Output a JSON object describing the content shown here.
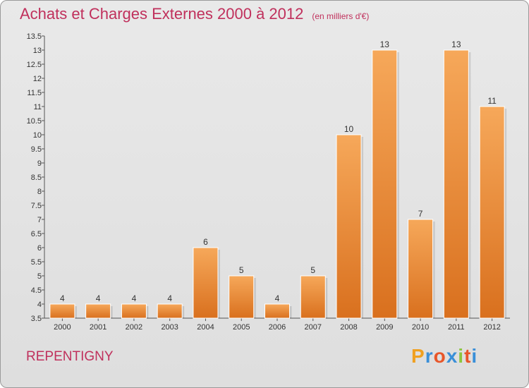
{
  "header": {
    "title": "Achats et Charges Externes 2000 à 2012",
    "subtitle": "(en milliers d'€)"
  },
  "footer": {
    "commune": "REPENTIGNY",
    "brand_letters": [
      "P",
      "r",
      "o",
      "x",
      "i",
      "t",
      "i"
    ],
    "brand_colors": [
      "#f0a020",
      "#3a8fd8",
      "#e8562a",
      "#3a8fd8",
      "#8cc63f",
      "#e8562a",
      "#3a8fd8"
    ]
  },
  "colors": {
    "bar_light": "#f6a85a",
    "bar_dark": "#d9701e",
    "title": "#c0305c"
  },
  "chart_data": {
    "type": "bar",
    "categories": [
      "2000",
      "2001",
      "2002",
      "2003",
      "2004",
      "2005",
      "2006",
      "2007",
      "2008",
      "2009",
      "2010",
      "2011",
      "2012"
    ],
    "values": [
      4,
      4,
      4,
      4,
      6,
      5,
      4,
      5,
      10,
      13,
      7,
      13,
      11
    ],
    "data_labels": [
      "4",
      "4",
      "4",
      "4",
      "6",
      "5",
      "4",
      "5",
      "10",
      "13",
      "7",
      "13",
      "11"
    ],
    "yticks": [
      "3.5",
      "4",
      "4.5",
      "5",
      "5.5",
      "6",
      "6.5",
      "7",
      "7.5",
      "8",
      "8.5",
      "9",
      "9.5",
      "10",
      "10.5",
      "11",
      "11.5",
      "12",
      "12.5",
      "13",
      "13.5"
    ],
    "ylim": [
      3.5,
      13.5
    ],
    "grid": false,
    "legend": "none"
  }
}
